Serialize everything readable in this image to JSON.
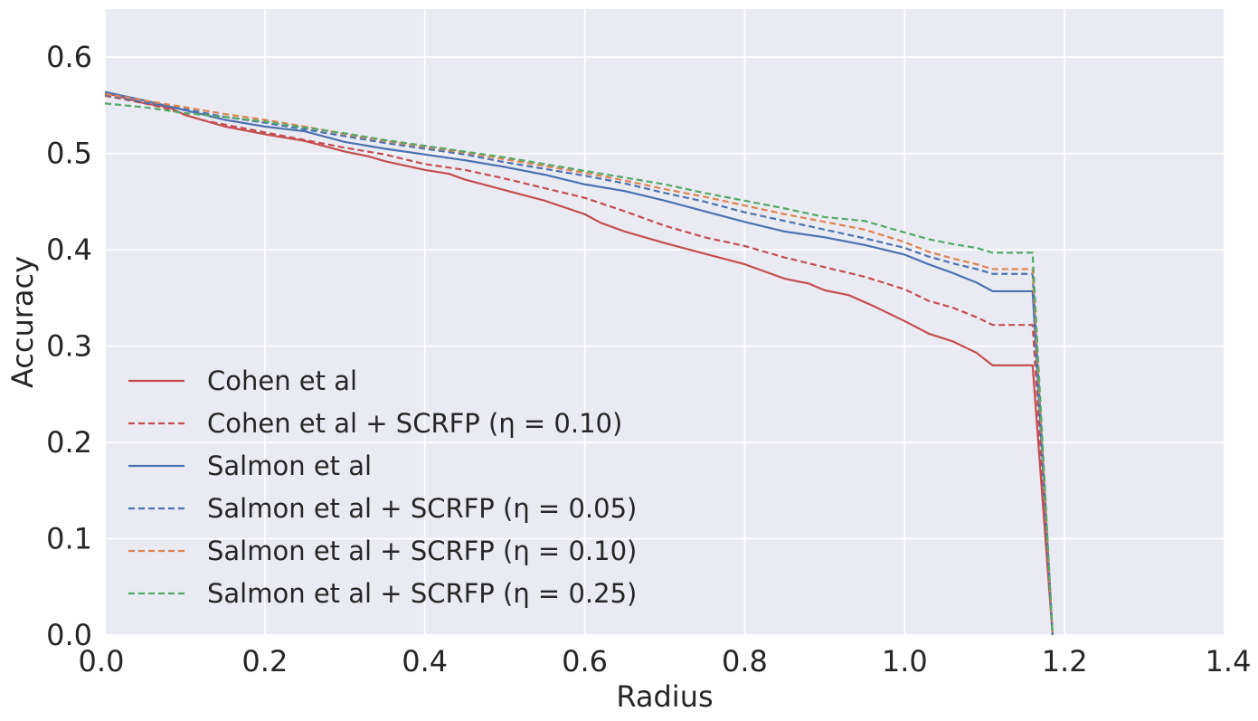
{
  "chart_data": {
    "type": "line",
    "title": "",
    "xlabel": "Radius",
    "ylabel": "Accuracy",
    "xlim": [
      0.0,
      1.4
    ],
    "ylim": [
      0.0,
      0.65
    ],
    "xticks": [
      "0.0",
      "0.2",
      "0.4",
      "0.6",
      "0.8",
      "1.0",
      "1.2",
      "1.4"
    ],
    "yticks": [
      "0.0",
      "0.1",
      "0.2",
      "0.3",
      "0.4",
      "0.5",
      "0.6"
    ],
    "grid": true,
    "legend_position": "lower-left",
    "series": [
      {
        "name": "Cohen et al",
        "color": "#c44e52",
        "dash": "solid",
        "x": [
          0.0,
          0.05,
          0.08,
          0.1,
          0.15,
          0.2,
          0.25,
          0.3,
          0.33,
          0.35,
          0.4,
          0.43,
          0.45,
          0.5,
          0.55,
          0.6,
          0.62,
          0.65,
          0.7,
          0.75,
          0.8,
          0.85,
          0.88,
          0.9,
          0.93,
          0.96,
          1.0,
          1.03,
          1.06,
          1.09,
          1.11,
          1.14,
          1.16,
          1.185
        ],
        "y": [
          0.563,
          0.552,
          0.548,
          0.54,
          0.528,
          0.52,
          0.513,
          0.502,
          0.497,
          0.492,
          0.483,
          0.479,
          0.473,
          0.462,
          0.451,
          0.437,
          0.428,
          0.419,
          0.407,
          0.396,
          0.385,
          0.37,
          0.365,
          0.358,
          0.353,
          0.342,
          0.326,
          0.313,
          0.305,
          0.293,
          0.28,
          0.28,
          0.28,
          0.0
        ]
      },
      {
        "name": "Cohen et al  + SCRFP (η = 0.10)",
        "color": "#c44e52",
        "dash": "dashed",
        "x": [
          0.0,
          0.05,
          0.08,
          0.12,
          0.15,
          0.2,
          0.25,
          0.3,
          0.35,
          0.4,
          0.45,
          0.5,
          0.55,
          0.6,
          0.65,
          0.7,
          0.75,
          0.8,
          0.85,
          0.9,
          0.95,
          1.0,
          1.03,
          1.06,
          1.09,
          1.11,
          1.14,
          1.16,
          1.185
        ],
        "y": [
          0.56,
          0.552,
          0.546,
          0.535,
          0.53,
          0.522,
          0.514,
          0.506,
          0.499,
          0.489,
          0.483,
          0.474,
          0.464,
          0.454,
          0.44,
          0.425,
          0.413,
          0.404,
          0.392,
          0.382,
          0.372,
          0.359,
          0.347,
          0.34,
          0.33,
          0.322,
          0.322,
          0.322,
          0.0
        ]
      },
      {
        "name": "Salmon et al",
        "color": "#4c72b0",
        "dash": "solid",
        "x": [
          0.0,
          0.05,
          0.1,
          0.15,
          0.2,
          0.25,
          0.3,
          0.35,
          0.4,
          0.45,
          0.5,
          0.55,
          0.6,
          0.65,
          0.7,
          0.75,
          0.8,
          0.85,
          0.9,
          0.95,
          1.0,
          1.03,
          1.06,
          1.09,
          1.11,
          1.14,
          1.16,
          1.185
        ],
        "y": [
          0.564,
          0.555,
          0.545,
          0.535,
          0.528,
          0.523,
          0.512,
          0.505,
          0.499,
          0.493,
          0.486,
          0.478,
          0.468,
          0.461,
          0.451,
          0.44,
          0.429,
          0.419,
          0.413,
          0.405,
          0.395,
          0.385,
          0.376,
          0.366,
          0.357,
          0.357,
          0.357,
          0.0
        ]
      },
      {
        "name": "Salmon et al + SCRFP (η = 0.05)",
        "color": "#4c72b0",
        "dash": "dashed",
        "x": [
          0.0,
          0.05,
          0.1,
          0.15,
          0.2,
          0.25,
          0.3,
          0.35,
          0.4,
          0.45,
          0.5,
          0.55,
          0.6,
          0.65,
          0.7,
          0.75,
          0.8,
          0.85,
          0.9,
          0.95,
          1.0,
          1.03,
          1.06,
          1.09,
          1.11,
          1.14,
          1.16,
          1.185
        ],
        "y": [
          0.561,
          0.553,
          0.546,
          0.538,
          0.532,
          0.525,
          0.518,
          0.511,
          0.505,
          0.499,
          0.491,
          0.484,
          0.477,
          0.469,
          0.459,
          0.45,
          0.439,
          0.43,
          0.421,
          0.412,
          0.402,
          0.393,
          0.386,
          0.38,
          0.375,
          0.375,
          0.375,
          0.0
        ]
      },
      {
        "name": "Salmon et al + SCRFP (η = 0.10)",
        "color": "#dd8452",
        "dash": "dashed",
        "x": [
          0.0,
          0.05,
          0.1,
          0.15,
          0.2,
          0.25,
          0.3,
          0.35,
          0.4,
          0.45,
          0.5,
          0.55,
          0.6,
          0.65,
          0.7,
          0.75,
          0.8,
          0.85,
          0.9,
          0.95,
          1.0,
          1.03,
          1.06,
          1.09,
          1.11,
          1.14,
          1.16,
          1.185
        ],
        "y": [
          0.562,
          0.555,
          0.548,
          0.541,
          0.535,
          0.528,
          0.52,
          0.513,
          0.507,
          0.501,
          0.494,
          0.487,
          0.48,
          0.472,
          0.463,
          0.455,
          0.446,
          0.437,
          0.429,
          0.421,
          0.408,
          0.398,
          0.391,
          0.385,
          0.38,
          0.38,
          0.38,
          0.0
        ]
      },
      {
        "name": "Salmon et al + SCRFP (η = 0.25)",
        "color": "#55a868",
        "dash": "dashed",
        "x": [
          0.0,
          0.05,
          0.1,
          0.15,
          0.2,
          0.25,
          0.3,
          0.35,
          0.4,
          0.45,
          0.5,
          0.55,
          0.6,
          0.65,
          0.7,
          0.75,
          0.8,
          0.85,
          0.9,
          0.95,
          1.0,
          1.03,
          1.06,
          1.09,
          1.11,
          1.14,
          1.16,
          1.185
        ],
        "y": [
          0.552,
          0.548,
          0.542,
          0.538,
          0.533,
          0.527,
          0.521,
          0.514,
          0.508,
          0.502,
          0.496,
          0.489,
          0.482,
          0.475,
          0.468,
          0.459,
          0.451,
          0.443,
          0.434,
          0.43,
          0.418,
          0.411,
          0.406,
          0.402,
          0.397,
          0.397,
          0.397,
          0.0
        ]
      }
    ]
  }
}
